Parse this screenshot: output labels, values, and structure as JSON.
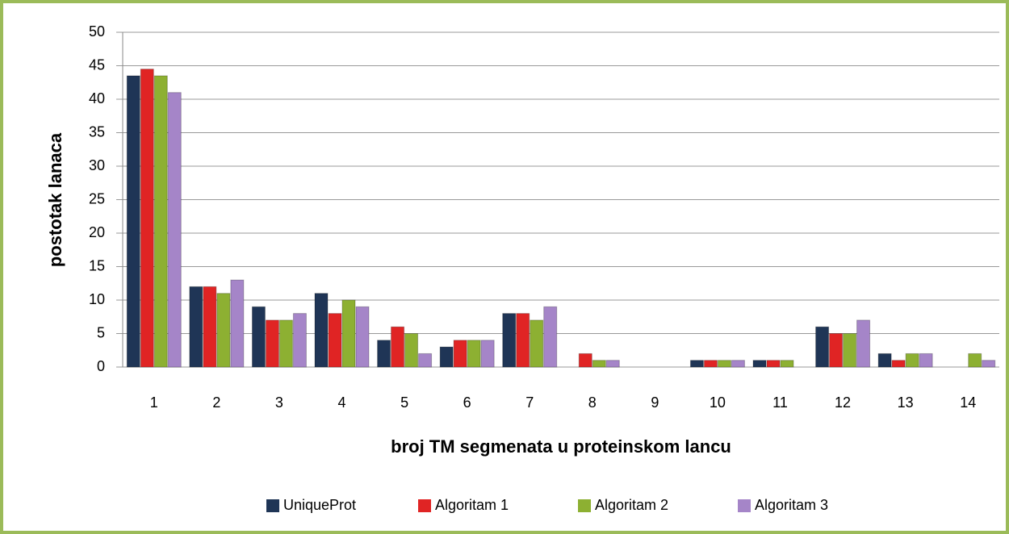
{
  "chart_data": {
    "type": "bar",
    "xlabel": "broj TM segmenata u proteinskom lancu",
    "ylabel": "postotak lanaca",
    "categories": [
      "1",
      "2",
      "3",
      "4",
      "5",
      "6",
      "7",
      "8",
      "9",
      "10",
      "11",
      "12",
      "13",
      "14"
    ],
    "series": [
      {
        "name": "UniqueProt",
        "color": "#1f3556",
        "values": [
          43.5,
          12,
          9,
          11,
          4,
          3,
          8,
          0,
          0,
          1,
          1,
          6,
          2,
          0
        ]
      },
      {
        "name": "Algoritam 1",
        "color": "#e02424",
        "values": [
          44.5,
          12,
          7,
          8,
          6,
          4,
          8,
          2,
          0,
          1,
          1,
          5,
          1,
          0
        ]
      },
      {
        "name": "Algoritam 2",
        "color": "#8db032",
        "values": [
          43.5,
          11,
          7,
          10,
          5,
          4,
          7,
          1,
          0,
          1,
          1,
          5,
          2,
          2
        ]
      },
      {
        "name": "Algoritam 3",
        "color": "#a585c8",
        "values": [
          41,
          13,
          8,
          9,
          2,
          4,
          9,
          1,
          0,
          1,
          0,
          7,
          2,
          1
        ]
      }
    ],
    "ylim": [
      0,
      50
    ],
    "yticks": [
      0,
      5,
      10,
      15,
      20,
      25,
      30,
      35,
      40,
      45,
      50
    ],
    "grid": true,
    "legend": "bottom"
  }
}
